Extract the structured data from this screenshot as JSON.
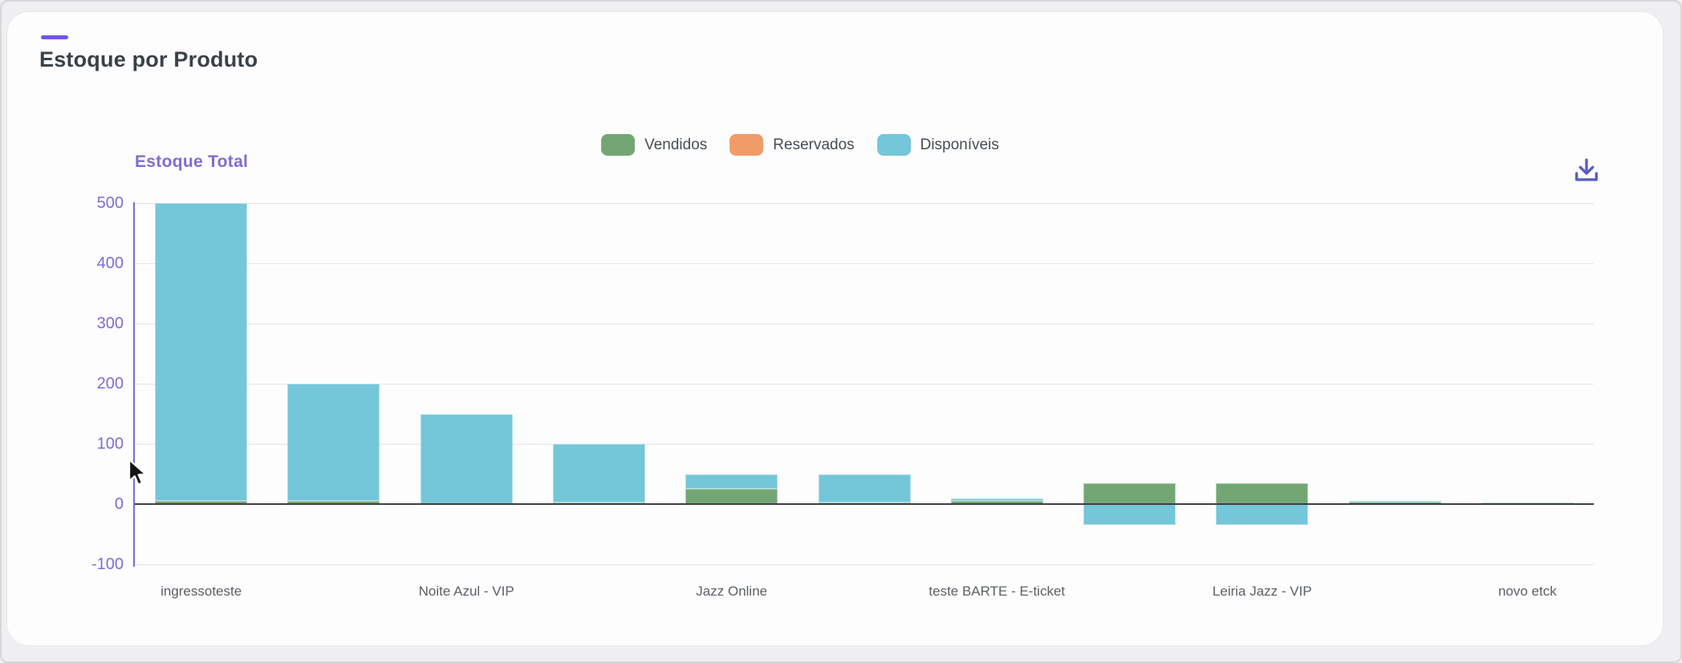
{
  "card": {
    "title": "Estoque por Produto",
    "accent_color": "#7355e6"
  },
  "legend": [
    {
      "label": "Vendidos",
      "color": "#74a674"
    },
    {
      "label": "Reservados",
      "color": "#f09c68"
    },
    {
      "label": "Disponíveis",
      "color": "#74c6d9"
    }
  ],
  "toolbar": {
    "download_icon_color": "#585fc2"
  },
  "chart_data": {
    "type": "bar",
    "stacked": true,
    "title": "Estoque Total",
    "ylabel": "Estoque Total",
    "xlabel": "",
    "grid": true,
    "legend_position": "top-center",
    "ylim": [
      -100,
      500
    ],
    "yticks": [
      500,
      400,
      300,
      200,
      100,
      0,
      -100
    ],
    "axis_color": "#7e6dd3",
    "zero_line_color": "#3e3e40",
    "categories": [
      "ingressoteste",
      "",
      "Noite Azul - VIP",
      "",
      "Jazz Online",
      "",
      "teste BARTE - E-ticket",
      "",
      "Leiria Jazz - VIP",
      "",
      "novo etck"
    ],
    "series": [
      {
        "name": "Vendidos",
        "color": "#74a674",
        "values": [
          5,
          5,
          0,
          3,
          25,
          3,
          5,
          35,
          35,
          4,
          2
        ]
      },
      {
        "name": "Reservados",
        "color": "#f09c68",
        "values": [
          0,
          0,
          0,
          0,
          0,
          0,
          0,
          0,
          0,
          0,
          0
        ]
      },
      {
        "name": "Disponíveis",
        "color": "#74c6d9",
        "values": [
          495,
          195,
          150,
          97,
          25,
          47,
          5,
          -35,
          -35,
          2,
          1
        ]
      }
    ]
  }
}
